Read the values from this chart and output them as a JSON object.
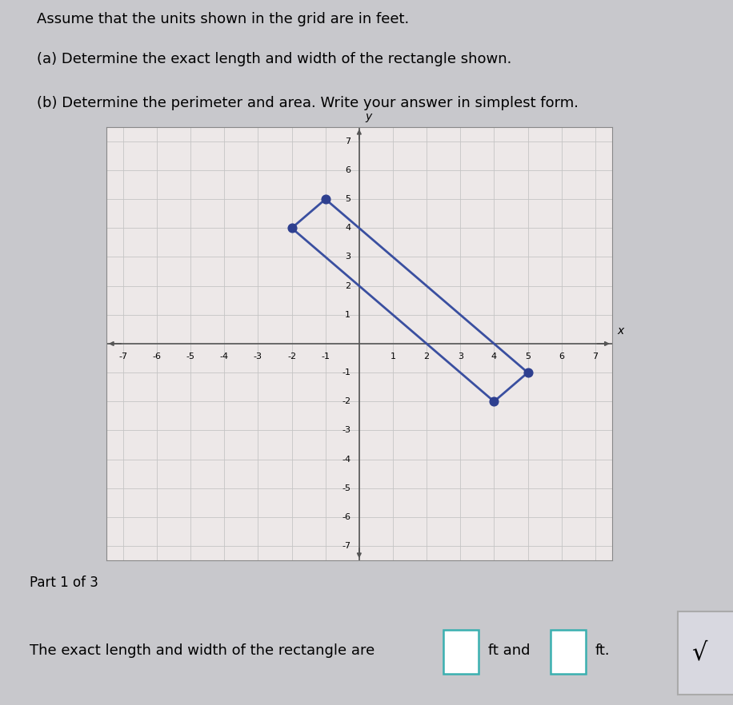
{
  "title_lines": [
    "Assume that the units shown in the grid are in feet.",
    "(a) Determine the exact length and width of the rectangle shown.",
    "(b) Determine the perimeter and area. Write your answer in simplest form."
  ],
  "rect_vertices": [
    [
      -1,
      5
    ],
    [
      5,
      -1
    ],
    [
      4,
      -2
    ],
    [
      -2,
      4
    ]
  ],
  "dot_points": [
    [
      -1,
      5
    ],
    [
      -2,
      4
    ],
    [
      4,
      -2
    ],
    [
      5,
      -1
    ]
  ],
  "rect_color": "#3a4fa0",
  "dot_color": "#2e3f8f",
  "dot_size": 60,
  "xlim": [
    -7.5,
    7.5
  ],
  "ylim": [
    -7.5,
    7.5
  ],
  "xticks": [
    -7,
    -6,
    -5,
    -4,
    -3,
    -2,
    -1,
    1,
    2,
    3,
    4,
    5,
    6,
    7
  ],
  "yticks": [
    -7,
    -6,
    -5,
    -4,
    -3,
    -2,
    -1,
    1,
    2,
    3,
    4,
    5,
    6,
    7
  ],
  "grid_color": "#c5c5c5",
  "axis_color": "#555555",
  "plot_bg": "#ede8e8",
  "part_label": "Part 1 of 3",
  "bottom_text": "The exact length and width of the rectangle are",
  "ft_and": "ft and",
  "ft_end": "ft.",
  "sqrt_symbol": "√",
  "part_bg": "#b8b8c8",
  "answer_bg": "#f0eeee",
  "box_border_color": "#3ab0b0",
  "figure_bg": "#c8c8cc",
  "title_bg": "#f0eeee"
}
